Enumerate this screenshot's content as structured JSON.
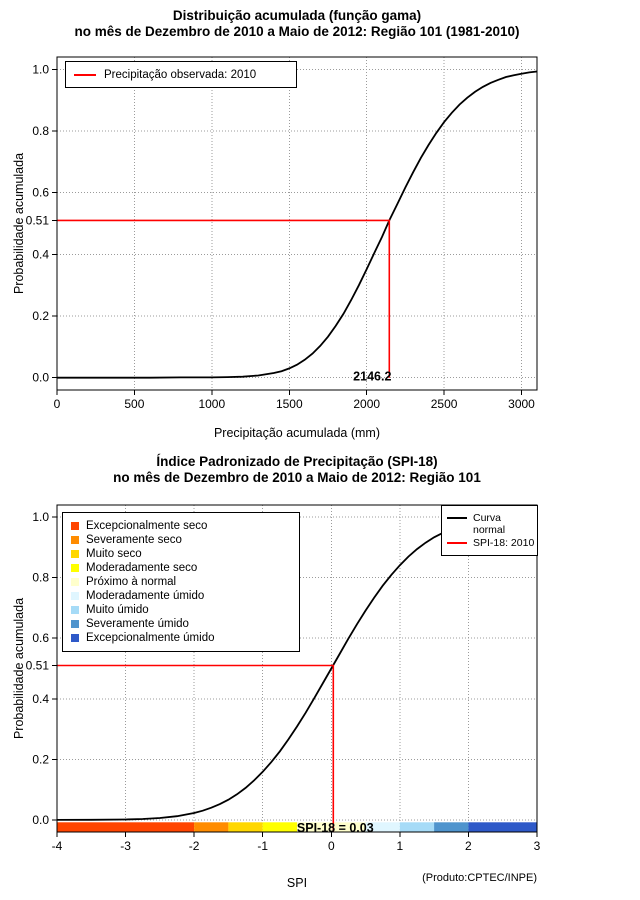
{
  "chart_data": [
    {
      "name": "gamma-cumulative-distribution",
      "type": "line",
      "title_line1": "Distribuição acumulada (função gama)",
      "title_line2": "no mês de Dezembro de 2010 a Maio de 2012: Região 101 (1981-2010)",
      "xlabel": "Precipitação acumulada (mm)",
      "ylabel": "Probabilidade acumulada",
      "xlim": [
        0,
        3100
      ],
      "ylim": [
        -0.04,
        1.04
      ],
      "grid": true,
      "xticks": [
        0,
        500,
        1000,
        1500,
        2000,
        2500,
        3000
      ],
      "xtick_labels": [
        "0",
        "500",
        "1000",
        "1500",
        "2000",
        "2500",
        "3000"
      ],
      "yticks": [
        0,
        0.2,
        0.4,
        0.6,
        0.8,
        1
      ],
      "ytick_labels": [
        "0.0",
        "0.2",
        "0.4",
        "0.6",
        "0.8",
        "1.0"
      ],
      "extra_ytick": {
        "value": 0.51,
        "label": "0.51"
      },
      "curve_color": "#000000",
      "marker": {
        "x": 2146.2,
        "y": 0.51,
        "label": "2146.2",
        "color": "#ff0000",
        "line_bottom": 0,
        "label_dx": -17,
        "label_dy": 3
      },
      "legend": {
        "position": "top-left",
        "items": [
          {
            "label": "Precipitação observada: 2010",
            "color": "#ff0000",
            "type": "line"
          }
        ]
      },
      "curve": [
        [
          0,
          0
        ],
        [
          300,
          0
        ],
        [
          600,
          0
        ],
        [
          800,
          0.001
        ],
        [
          1000,
          0.001
        ],
        [
          1100,
          0.002
        ],
        [
          1200,
          0.003
        ],
        [
          1300,
          0.007
        ],
        [
          1400,
          0.015
        ],
        [
          1450,
          0.021
        ],
        [
          1500,
          0.03
        ],
        [
          1550,
          0.042
        ],
        [
          1600,
          0.058
        ],
        [
          1650,
          0.078
        ],
        [
          1700,
          0.103
        ],
        [
          1750,
          0.133
        ],
        [
          1800,
          0.168
        ],
        [
          1850,
          0.207
        ],
        [
          1900,
          0.252
        ],
        [
          1950,
          0.3
        ],
        [
          2000,
          0.352
        ],
        [
          2050,
          0.405
        ],
        [
          2100,
          0.458
        ],
        [
          2146.2,
          0.51
        ],
        [
          2200,
          0.565
        ],
        [
          2250,
          0.617
        ],
        [
          2300,
          0.666
        ],
        [
          2350,
          0.713
        ],
        [
          2400,
          0.755
        ],
        [
          2450,
          0.794
        ],
        [
          2500,
          0.829
        ],
        [
          2550,
          0.859
        ],
        [
          2600,
          0.886
        ],
        [
          2650,
          0.908
        ],
        [
          2700,
          0.927
        ],
        [
          2750,
          0.943
        ],
        [
          2800,
          0.956
        ],
        [
          2850,
          0.966
        ],
        [
          2900,
          0.975
        ],
        [
          2950,
          0.981
        ],
        [
          3000,
          0.986
        ],
        [
          3050,
          0.99
        ],
        [
          3100,
          0.993
        ]
      ]
    },
    {
      "name": "spi-18-cumulative-distribution",
      "type": "line",
      "title_line1": "Índice Padronizado de Precipitação (SPI-18)",
      "title_line2": "no mês de Dezembro de 2010 a Maio de 2012: Região 101",
      "xlabel": "SPI",
      "ylabel": "Probabilidade acumulada",
      "footnote": "(Produto:CPTEC/INPE)",
      "xlim": [
        -4,
        3
      ],
      "ylim": [
        -0.04,
        1.04
      ],
      "grid": true,
      "xticks": [
        -4,
        -3,
        -2,
        -1,
        0,
        1,
        2,
        3
      ],
      "xtick_labels": [
        "-4",
        "-3",
        "-2",
        "-1",
        "0",
        "1",
        "2",
        "3"
      ],
      "yticks": [
        0,
        0.2,
        0.4,
        0.6,
        0.8,
        1
      ],
      "ytick_labels": [
        "0.0",
        "0.2",
        "0.4",
        "0.6",
        "0.8",
        "1.0"
      ],
      "extra_ytick": {
        "value": 0.51,
        "label": "0.51"
      },
      "curve_color": "#000000",
      "marker": {
        "x": 0.03,
        "y": 0.51,
        "label": "SPI-18 = 0.03",
        "color": "#ff0000",
        "line_bottom": -0.04,
        "label_dx": 2,
        "label_dy": 0
      },
      "bar_top": -0.008,
      "categories": [
        {
          "label": "Excepcionalmente seco",
          "color": "#FF4500",
          "from": -4,
          "to": -2
        },
        {
          "label": "Severamente seco",
          "color": "#FF8C00",
          "from": -2,
          "to": -1.5
        },
        {
          "label": "Muito seco",
          "color": "#FFD700",
          "from": -1.5,
          "to": -1
        },
        {
          "label": "Moderadamente seco",
          "color": "#FFFF00",
          "from": -1,
          "to": -0.5
        },
        {
          "label": "Próximo à normal",
          "color": "#FFFFCC",
          "from": -0.5,
          "to": 0.5
        },
        {
          "label": "Moderadamente úmido",
          "color": "#E0F6FF",
          "from": 0.5,
          "to": 1
        },
        {
          "label": "Muito úmido",
          "color": "#A6DBF7",
          "from": 1,
          "to": 1.5
        },
        {
          "label": "Severamente úmido",
          "color": "#4F94CD",
          "from": 1.5,
          "to": 2
        },
        {
          "label": "Excepcionalmente úmido",
          "color": "#2E59C8",
          "from": 2,
          "to": 3
        }
      ],
      "legend_right": [
        {
          "label_lines": [
            "Curva",
            "normal"
          ],
          "color": "#000000"
        },
        {
          "label_lines": [
            "SPI-18: 2010"
          ],
          "color": "#ff0000"
        }
      ],
      "curve": [
        [
          -4,
          0
        ],
        [
          -3.5,
          0.0002
        ],
        [
          -3,
          0.0013
        ],
        [
          -2.75,
          0.003
        ],
        [
          -2.5,
          0.0062
        ],
        [
          -2.25,
          0.0122
        ],
        [
          -2,
          0.0228
        ],
        [
          -1.875,
          0.0304
        ],
        [
          -1.75,
          0.0401
        ],
        [
          -1.625,
          0.0521
        ],
        [
          -1.5,
          0.0668
        ],
        [
          -1.375,
          0.0846
        ],
        [
          -1.25,
          0.1056
        ],
        [
          -1.125,
          0.1303
        ],
        [
          -1,
          0.1587
        ],
        [
          -0.875,
          0.1908
        ],
        [
          -0.75,
          0.2266
        ],
        [
          -0.625,
          0.266
        ],
        [
          -0.5,
          0.3085
        ],
        [
          -0.375,
          0.3538
        ],
        [
          -0.25,
          0.4013
        ],
        [
          -0.125,
          0.4503
        ],
        [
          0,
          0.5
        ],
        [
          0.125,
          0.5497
        ],
        [
          0.25,
          0.5987
        ],
        [
          0.375,
          0.6462
        ],
        [
          0.5,
          0.6915
        ],
        [
          0.625,
          0.734
        ],
        [
          0.75,
          0.7734
        ],
        [
          0.875,
          0.8092
        ],
        [
          1,
          0.8413
        ],
        [
          1.125,
          0.8697
        ],
        [
          1.25,
          0.8944
        ],
        [
          1.375,
          0.9154
        ],
        [
          1.5,
          0.9332
        ],
        [
          1.625,
          0.9479
        ],
        [
          1.75,
          0.9599
        ],
        [
          1.875,
          0.9696
        ],
        [
          2,
          0.9772
        ],
        [
          2.25,
          0.9878
        ],
        [
          2.5,
          0.9938
        ],
        [
          2.75,
          0.997
        ],
        [
          3,
          0.9987
        ]
      ]
    }
  ]
}
